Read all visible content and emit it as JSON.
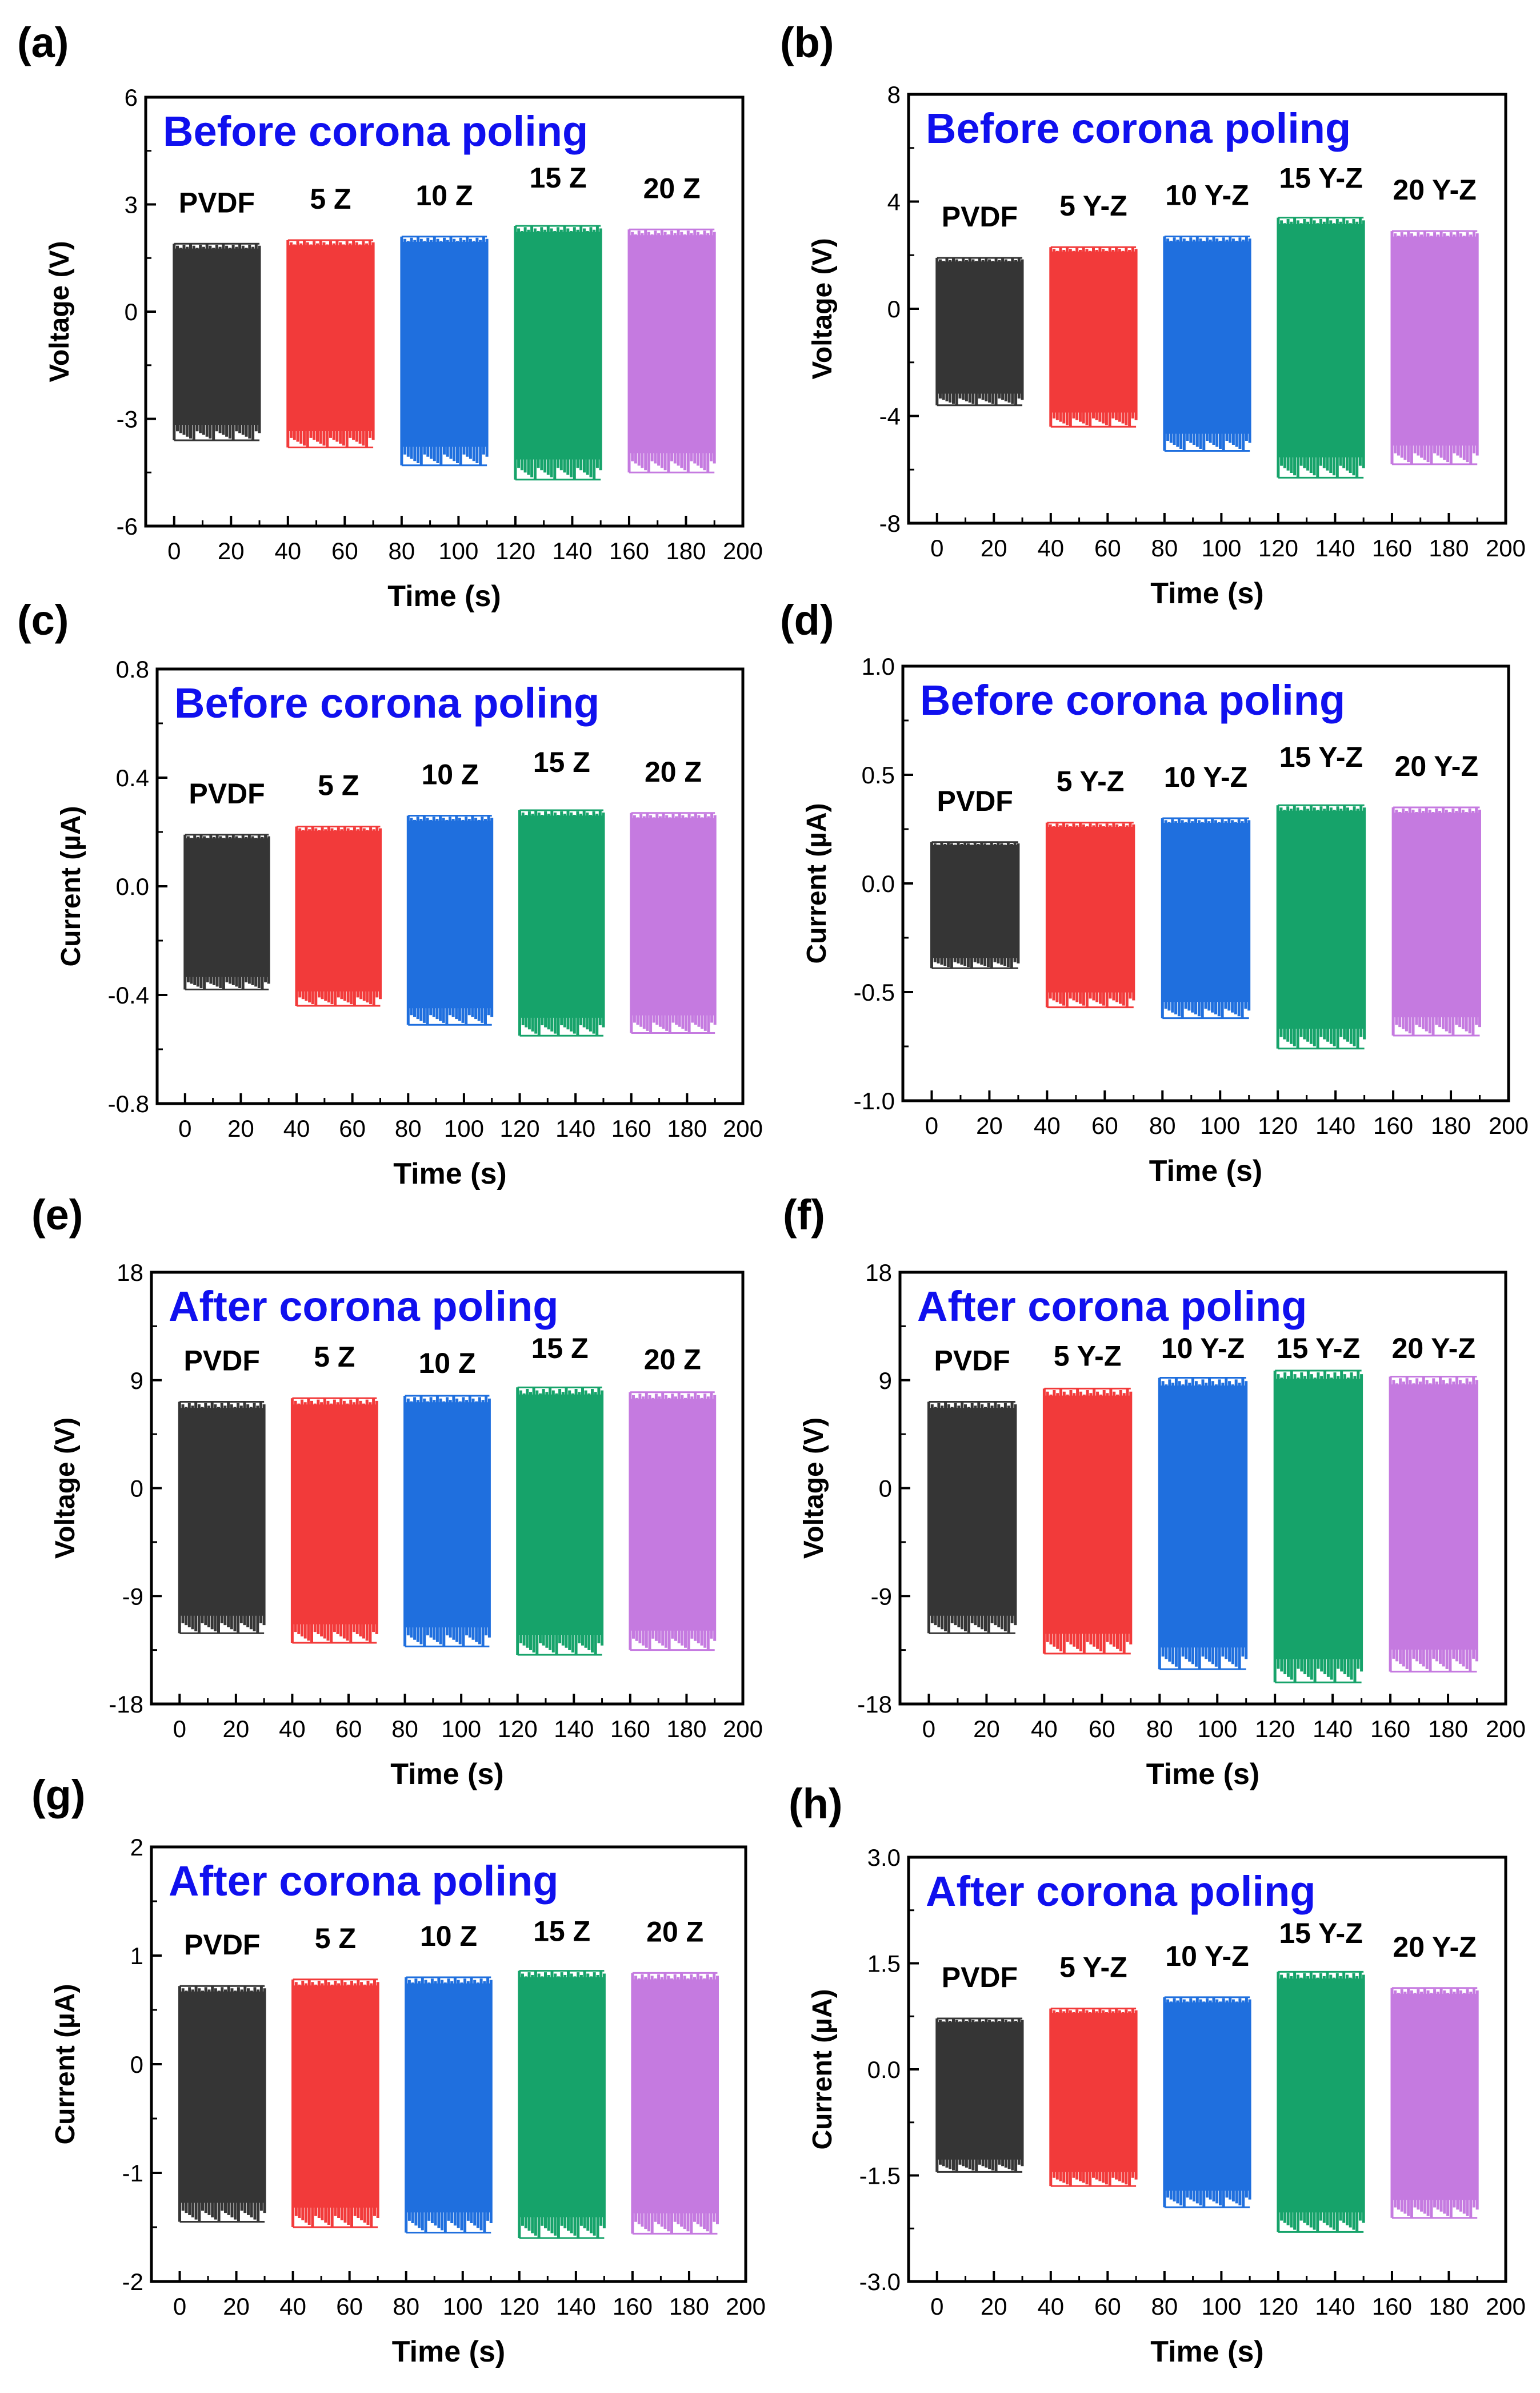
{
  "figure": {
    "series_colors": [
      "#353535",
      "#f23a3a",
      "#1f6fde",
      "#16a36a",
      "#c57ae0"
    ],
    "title_color": "#1010ee"
  },
  "chart_data": [
    {
      "label": "(a)",
      "type": "line",
      "title": "Before corona poling",
      "xlabel": "Time (s)",
      "ylabel": "Voltage (V)",
      "xlim": [
        -10,
        200
      ],
      "ylim": [
        -6,
        6
      ],
      "xticks": [
        0,
        20,
        40,
        60,
        80,
        100,
        120,
        140,
        160,
        180,
        200
      ],
      "yticks": [
        -6,
        -3,
        0,
        3,
        6
      ],
      "ytick_labels": [
        "-6",
        "-3",
        "0",
        "3",
        "6"
      ],
      "series": [
        {
          "name": "PVDF",
          "x_range": [
            0,
            30
          ],
          "pos_peak": 1.9,
          "neg_peak": -3.6
        },
        {
          "name": "5 Z",
          "x_range": [
            40,
            70
          ],
          "pos_peak": 2.0,
          "neg_peak": -3.8
        },
        {
          "name": "10 Z",
          "x_range": [
            80,
            110
          ],
          "pos_peak": 2.1,
          "neg_peak": -4.3
        },
        {
          "name": "15 Z",
          "x_range": [
            120,
            150
          ],
          "pos_peak": 2.4,
          "neg_peak": -4.7
        },
        {
          "name": "20 Z",
          "x_range": [
            160,
            190
          ],
          "pos_peak": 2.3,
          "neg_peak": -4.5
        }
      ]
    },
    {
      "label": "(b)",
      "type": "line",
      "title": "Before corona poling",
      "xlabel": "Time (s)",
      "ylabel": "Voltage (V)",
      "xlim": [
        -10,
        200
      ],
      "ylim": [
        -8,
        8
      ],
      "xticks": [
        0,
        20,
        40,
        60,
        80,
        100,
        120,
        140,
        160,
        180,
        200
      ],
      "yticks": [
        -8,
        -4,
        0,
        4,
        8
      ],
      "ytick_labels": [
        "-8",
        "-4",
        "0",
        "4",
        "8"
      ],
      "series": [
        {
          "name": "PVDF",
          "x_range": [
            0,
            30
          ],
          "pos_peak": 1.9,
          "neg_peak": -3.6
        },
        {
          "name": "5 Y-Z",
          "x_range": [
            40,
            70
          ],
          "pos_peak": 2.3,
          "neg_peak": -4.4
        },
        {
          "name": "10 Y-Z",
          "x_range": [
            80,
            110
          ],
          "pos_peak": 2.7,
          "neg_peak": -5.3
        },
        {
          "name": "15 Y-Z",
          "x_range": [
            120,
            150
          ],
          "pos_peak": 3.4,
          "neg_peak": -6.3
        },
        {
          "name": "20 Y-Z",
          "x_range": [
            160,
            190
          ],
          "pos_peak": 2.9,
          "neg_peak": -5.8
        }
      ]
    },
    {
      "label": "(c)",
      "type": "line",
      "title": "Before corona poling",
      "xlabel": "Time (s)",
      "ylabel": "Current (µA)",
      "xlim": [
        -10,
        200
      ],
      "ylim": [
        -0.8,
        0.8
      ],
      "xticks": [
        0,
        20,
        40,
        60,
        80,
        100,
        120,
        140,
        160,
        180,
        200
      ],
      "yticks": [
        -0.8,
        -0.4,
        0.0,
        0.4,
        0.8
      ],
      "ytick_labels": [
        "-0.8",
        "-0.4",
        "0.0",
        "0.4",
        "0.8"
      ],
      "series": [
        {
          "name": "PVDF",
          "x_range": [
            0,
            30
          ],
          "pos_peak": 0.19,
          "neg_peak": -0.38
        },
        {
          "name": "5 Z",
          "x_range": [
            40,
            70
          ],
          "pos_peak": 0.22,
          "neg_peak": -0.44
        },
        {
          "name": "10 Z",
          "x_range": [
            80,
            110
          ],
          "pos_peak": 0.26,
          "neg_peak": -0.51
        },
        {
          "name": "15 Z",
          "x_range": [
            120,
            150
          ],
          "pos_peak": 0.28,
          "neg_peak": -0.55
        },
        {
          "name": "20 Z",
          "x_range": [
            160,
            190
          ],
          "pos_peak": 0.27,
          "neg_peak": -0.54
        }
      ]
    },
    {
      "label": "(d)",
      "type": "line",
      "title": "Before corona poling",
      "xlabel": "Time (s)",
      "ylabel": "Current (µA)",
      "xlim": [
        -10,
        200
      ],
      "ylim": [
        -1.0,
        1.0
      ],
      "xticks": [
        0,
        20,
        40,
        60,
        80,
        100,
        120,
        140,
        160,
        180,
        200
      ],
      "yticks": [
        -1.0,
        -0.5,
        0.0,
        0.5,
        1.0
      ],
      "ytick_labels": [
        "-1.0",
        "-0.5",
        "0.0",
        "0.5",
        "1.0"
      ],
      "series": [
        {
          "name": "PVDF",
          "x_range": [
            0,
            30
          ],
          "pos_peak": 0.19,
          "neg_peak": -0.39
        },
        {
          "name": "5 Y-Z",
          "x_range": [
            40,
            70
          ],
          "pos_peak": 0.28,
          "neg_peak": -0.57
        },
        {
          "name": "10 Y-Z",
          "x_range": [
            80,
            110
          ],
          "pos_peak": 0.3,
          "neg_peak": -0.62
        },
        {
          "name": "15 Y-Z",
          "x_range": [
            120,
            150
          ],
          "pos_peak": 0.36,
          "neg_peak": -0.76
        },
        {
          "name": "20 Y-Z",
          "x_range": [
            160,
            190
          ],
          "pos_peak": 0.35,
          "neg_peak": -0.7
        }
      ]
    },
    {
      "label": "(e)",
      "type": "line",
      "title": "After corona poling",
      "xlabel": "Time (s)",
      "ylabel": "Voltage (V)",
      "xlim": [
        -10,
        200
      ],
      "ylim": [
        -18,
        18
      ],
      "xticks": [
        0,
        20,
        40,
        60,
        80,
        100,
        120,
        140,
        160,
        180,
        200
      ],
      "yticks": [
        -18,
        -9,
        0,
        9,
        18
      ],
      "ytick_labels": [
        "-18",
        "-9",
        "0",
        "9",
        "18"
      ],
      "series": [
        {
          "name": "PVDF",
          "x_range": [
            0,
            30
          ],
          "pos_peak": 7.2,
          "neg_peak": -12.1
        },
        {
          "name": "5 Z",
          "x_range": [
            40,
            70
          ],
          "pos_peak": 7.5,
          "neg_peak": -12.9
        },
        {
          "name": "10 Z",
          "x_range": [
            80,
            110
          ],
          "pos_peak": 7.7,
          "neg_peak": -13.2
        },
        {
          "name": "15 Z",
          "x_range": [
            120,
            150
          ],
          "pos_peak": 8.4,
          "neg_peak": -13.9
        },
        {
          "name": "20 Z",
          "x_range": [
            160,
            190
          ],
          "pos_peak": 8.0,
          "neg_peak": -13.5
        }
      ]
    },
    {
      "label": "(f)",
      "type": "line",
      "title": "After corona poling",
      "xlabel": "Time (s)",
      "ylabel": "Voltage (V)",
      "xlim": [
        -10,
        200
      ],
      "ylim": [
        -18,
        18
      ],
      "xticks": [
        0,
        20,
        40,
        60,
        80,
        100,
        120,
        140,
        160,
        180,
        200
      ],
      "yticks": [
        -18,
        -9,
        0,
        9,
        18
      ],
      "ytick_labels": [
        "-18",
        "-9",
        "0",
        "9",
        "18"
      ],
      "series": [
        {
          "name": "PVDF",
          "x_range": [
            0,
            30
          ],
          "pos_peak": 7.2,
          "neg_peak": -12.1
        },
        {
          "name": "5 Y-Z",
          "x_range": [
            40,
            70
          ],
          "pos_peak": 8.3,
          "neg_peak": -13.8
        },
        {
          "name": "10 Y-Z",
          "x_range": [
            80,
            110
          ],
          "pos_peak": 9.2,
          "neg_peak": -15.1
        },
        {
          "name": "15 Y-Z",
          "x_range": [
            120,
            150
          ],
          "pos_peak": 9.8,
          "neg_peak": -16.2
        },
        {
          "name": "20 Y-Z",
          "x_range": [
            160,
            190
          ],
          "pos_peak": 9.3,
          "neg_peak": -15.3
        }
      ]
    },
    {
      "label": "(g)",
      "type": "line",
      "title": "After corona poling",
      "xlabel": "Time (s)",
      "ylabel": "Current (µA)",
      "xlim": [
        -10,
        200
      ],
      "ylim": [
        -2,
        2
      ],
      "xticks": [
        0,
        20,
        40,
        60,
        80,
        100,
        120,
        140,
        160,
        180,
        200
      ],
      "yticks": [
        -2,
        -1,
        0,
        1,
        2
      ],
      "ytick_labels": [
        "-2",
        "-1",
        "0",
        "1",
        "2"
      ],
      "series": [
        {
          "name": "PVDF",
          "x_range": [
            0,
            30
          ],
          "pos_peak": 0.72,
          "neg_peak": -1.45
        },
        {
          "name": "5 Z",
          "x_range": [
            40,
            70
          ],
          "pos_peak": 0.78,
          "neg_peak": -1.5
        },
        {
          "name": "10 Z",
          "x_range": [
            80,
            110
          ],
          "pos_peak": 0.8,
          "neg_peak": -1.55
        },
        {
          "name": "15 Z",
          "x_range": [
            120,
            150
          ],
          "pos_peak": 0.86,
          "neg_peak": -1.6
        },
        {
          "name": "20 Z",
          "x_range": [
            160,
            190
          ],
          "pos_peak": 0.84,
          "neg_peak": -1.56
        }
      ]
    },
    {
      "label": "(h)",
      "type": "line",
      "title": "After corona poling",
      "xlabel": "Time (s)",
      "ylabel": "Current (µA)",
      "xlim": [
        -10,
        200
      ],
      "ylim": [
        -3.0,
        3.0
      ],
      "xticks": [
        0,
        20,
        40,
        60,
        80,
        100,
        120,
        140,
        160,
        180,
        200
      ],
      "yticks": [
        -3.0,
        -1.5,
        0.0,
        1.5,
        3.0
      ],
      "ytick_labels": [
        "-3.0",
        "-1.5",
        "0.0",
        "1.5",
        "3.0"
      ],
      "series": [
        {
          "name": "PVDF",
          "x_range": [
            0,
            30
          ],
          "pos_peak": 0.72,
          "neg_peak": -1.45
        },
        {
          "name": "5 Y-Z",
          "x_range": [
            40,
            70
          ],
          "pos_peak": 0.86,
          "neg_peak": -1.65
        },
        {
          "name": "10 Y-Z",
          "x_range": [
            80,
            110
          ],
          "pos_peak": 1.02,
          "neg_peak": -1.95
        },
        {
          "name": "15 Y-Z",
          "x_range": [
            120,
            150
          ],
          "pos_peak": 1.38,
          "neg_peak": -2.3
        },
        {
          "name": "20 Y-Z",
          "x_range": [
            160,
            190
          ],
          "pos_peak": 1.15,
          "neg_peak": -2.1
        }
      ]
    }
  ]
}
